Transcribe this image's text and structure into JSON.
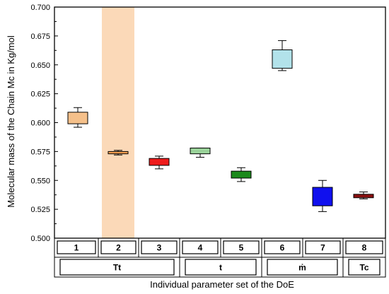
{
  "chart_data": {
    "type": "box",
    "xlabel": "Individual parameter set of the DoE",
    "ylabel": "Molecular mass of the Chain Mc in Kg/mol",
    "ylim": [
      0.5,
      0.7
    ],
    "yticks": [
      "0.500",
      "0.525",
      "0.550",
      "0.575",
      "0.600",
      "0.625",
      "0.650",
      "0.675",
      "0.700"
    ],
    "highlight_category": "2",
    "highlight_color": "#fbd9b8",
    "categories": [
      "1",
      "2",
      "3",
      "4",
      "5",
      "6",
      "7",
      "8"
    ],
    "boxes": [
      {
        "label": "1",
        "whisker_low": 0.596,
        "q1": 0.599,
        "q3": 0.609,
        "whisker_high": 0.613,
        "color": "#f5c08a"
      },
      {
        "label": "2",
        "whisker_low": 0.572,
        "q1": 0.573,
        "q3": 0.575,
        "whisker_high": 0.576,
        "color": "#f5a050"
      },
      {
        "label": "3",
        "whisker_low": 0.56,
        "q1": 0.563,
        "q3": 0.569,
        "whisker_high": 0.571,
        "color": "#ee1c1c"
      },
      {
        "label": "4",
        "whisker_low": 0.57,
        "q1": 0.573,
        "q3": 0.578,
        "whisker_high": 0.578,
        "color": "#9ad39a"
      },
      {
        "label": "5",
        "whisker_low": 0.549,
        "q1": 0.552,
        "q3": 0.558,
        "whisker_high": 0.561,
        "color": "#1b8a1b"
      },
      {
        "label": "6",
        "whisker_low": 0.645,
        "q1": 0.647,
        "q3": 0.663,
        "whisker_high": 0.671,
        "color": "#b2e2ea"
      },
      {
        "label": "7",
        "whisker_low": 0.523,
        "q1": 0.528,
        "q3": 0.544,
        "whisker_high": 0.55,
        "color": "#1010ee"
      },
      {
        "label": "8",
        "whisker_low": 0.534,
        "q1": 0.535,
        "q3": 0.538,
        "whisker_high": 0.54,
        "color": "#8a1010"
      }
    ],
    "groups": [
      {
        "label": "Tt",
        "members": [
          "1",
          "2",
          "3"
        ]
      },
      {
        "label": "t",
        "members": [
          "4",
          "5"
        ]
      },
      {
        "label": "ṁ",
        "members": [
          "6",
          "7"
        ]
      },
      {
        "label": "Tc",
        "members": [
          "8"
        ]
      }
    ]
  }
}
